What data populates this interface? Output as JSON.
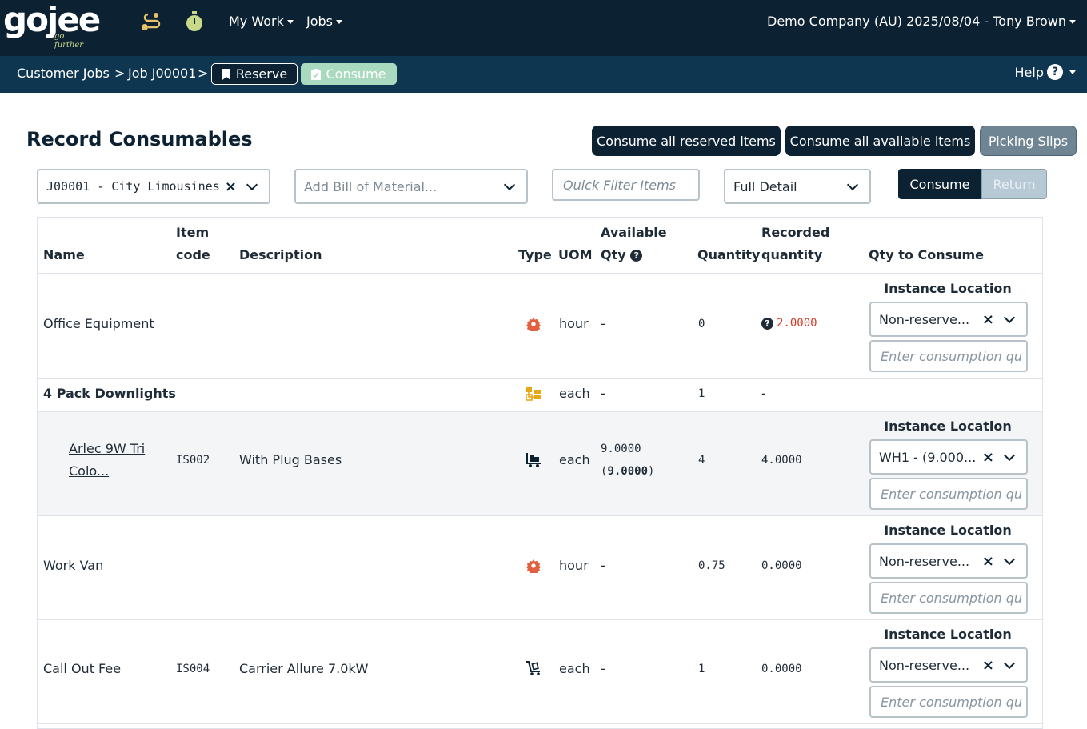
{
  "brand": {
    "name": "gojee",
    "tagline": "go further"
  },
  "nav": {
    "my_work": "My Work",
    "jobs": "Jobs",
    "user_info": "Demo Company (AU) 2025/08/04 - Tony Brown"
  },
  "breadcrumb": {
    "customer_jobs": "Customer Jobs",
    "sep1": ">",
    "job": "Job J00001",
    "sep2": ">",
    "reserve": "Reserve",
    "consume": "Consume",
    "help": "Help"
  },
  "page": {
    "title": "Record Consumables",
    "consume_reserved": "Consume all reserved items",
    "consume_available": "Consume all available items",
    "picking_slips": "Picking Slips"
  },
  "filters": {
    "job_select": "J00001 - City Limousines",
    "bom_placeholder": "Add Bill of Material...",
    "quick_filter_placeholder": "Quick Filter Items",
    "detail_select": "Full Detail",
    "toggle_consume": "Consume",
    "toggle_return": "Return"
  },
  "table": {
    "headers": {
      "name": "Name",
      "item_code_1": "Item",
      "item_code_2": "code",
      "description": "Description",
      "type": "Type",
      "uom": "UOM",
      "available_1": "Available",
      "available_2": "Qty",
      "quantity": "Quantity",
      "recorded_1": "Recorded",
      "recorded_2": "quantity",
      "qty_to_consume": "Qty to Consume"
    },
    "instance_label": "Instance Location",
    "consumption_placeholder": "Enter consumption qu",
    "rows": [
      {
        "name": "Office Equipment",
        "code": "",
        "description": "",
        "type_icon": "gear-icon",
        "uom": "hour",
        "available": "-",
        "quantity": "0",
        "recorded": "2.0000",
        "location": "Non-reserve..."
      },
      {
        "name": "4 Pack Downlights",
        "code": "",
        "description": "",
        "type_icon": "kit-icon",
        "uom": "each",
        "available": "-",
        "quantity": "1",
        "recorded": "-"
      },
      {
        "name_1": "Arlec 9W Tri",
        "name_2": "Colo...",
        "code": "IS002",
        "description": "With Plug Bases",
        "type_icon": "truck-icon",
        "uom": "each",
        "available_1": "9.0000",
        "available_2": "9.0000",
        "quantity": "4",
        "recorded": "4.0000",
        "location": "WH1 - (9.000..."
      },
      {
        "name": "Work Van",
        "code": "",
        "description": "",
        "type_icon": "gear-icon",
        "uom": "hour",
        "available": "-",
        "quantity": "0.75",
        "recorded": "0.0000",
        "location": "Non-reserve..."
      },
      {
        "name": "Call Out Fee",
        "code": "IS004",
        "description": "Carrier Allure 7.0kW",
        "type_icon": "trolley-icon",
        "uom": "each",
        "available": "-",
        "quantity": "1",
        "recorded": "0.0000",
        "location": "Non-reserve..."
      }
    ]
  },
  "colors": {
    "navy": "#0c2233",
    "subnav": "#0f3651",
    "accent_gear": "#e2603f",
    "kit": "#e7a817",
    "green_btn": "#a9d9bf",
    "red": "#d63b2a"
  }
}
